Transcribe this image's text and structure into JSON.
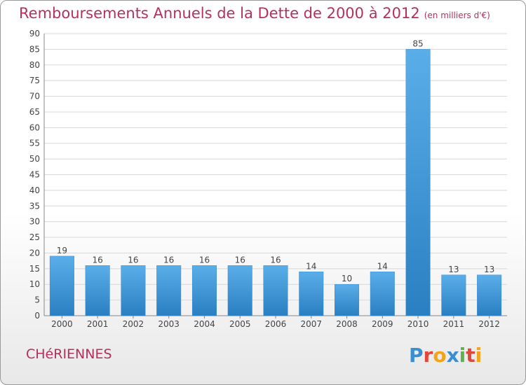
{
  "title": "Remboursements Annuels de la Dette de 2000 à 2012",
  "unit_note": "(en milliers d'€)",
  "commune": "CHéRIENNES",
  "logo_text": "Proxiti",
  "colors": {
    "title": "#b5305c",
    "bar_top": "#5aaee8",
    "bar_bottom": "#2a7fc2",
    "grid": "#d8d8d8"
  },
  "chart_data": {
    "type": "bar",
    "title": "Remboursements Annuels de la Dette de 2000 à 2012",
    "subtitle": "(en milliers d'€)",
    "categories": [
      "2000",
      "2001",
      "2002",
      "2003",
      "2004",
      "2005",
      "2006",
      "2007",
      "2008",
      "2009",
      "2010",
      "2011",
      "2012"
    ],
    "values": [
      19,
      16,
      16,
      16,
      16,
      16,
      16,
      14,
      10,
      14,
      85,
      13,
      13
    ],
    "ylim": [
      0,
      90
    ],
    "yticks": [
      0,
      5,
      10,
      15,
      20,
      25,
      30,
      35,
      40,
      45,
      50,
      55,
      60,
      65,
      70,
      75,
      80,
      85,
      90
    ],
    "grid": true,
    "data_labels": true
  }
}
